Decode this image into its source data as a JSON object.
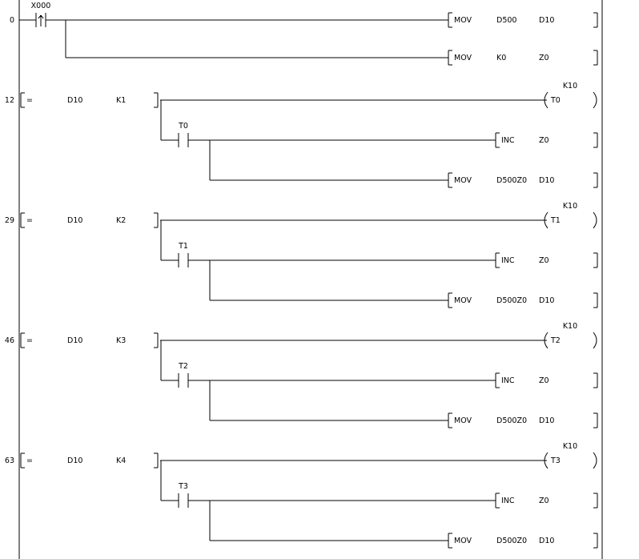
{
  "window": {
    "background": "#ffffff"
  },
  "diagram": {
    "line_color": "#000000",
    "text_color": "#000000",
    "rungs": [
      {
        "step": "0",
        "contact": {
          "device": "X000",
          "type": "rising-edge-pulse"
        },
        "branches": [
          {
            "instruction": {
              "op": "MOV",
              "args": [
                "D500",
                "D10"
              ]
            }
          },
          {
            "instruction": {
              "op": "MOV",
              "args": [
                "K0",
                "Z0"
              ]
            }
          }
        ]
      },
      {
        "step": "12",
        "compare": {
          "op": "=",
          "left": "D10",
          "right": "K1"
        },
        "coil": {
          "device": "T0",
          "preset": "K10"
        },
        "sub": {
          "contact": {
            "device": "T0",
            "type": "normally-open"
          },
          "branches": [
            {
              "instruction": {
                "op": "INC",
                "args": [
                  "Z0"
                ]
              }
            },
            {
              "instruction": {
                "op": "MOV",
                "args": [
                  "D500Z0",
                  "D10"
                ]
              }
            }
          ]
        }
      },
      {
        "step": "29",
        "compare": {
          "op": "=",
          "left": "D10",
          "right": "K2"
        },
        "coil": {
          "device": "T1",
          "preset": "K10"
        },
        "sub": {
          "contact": {
            "device": "T1",
            "type": "normally-open"
          },
          "branches": [
            {
              "instruction": {
                "op": "INC",
                "args": [
                  "Z0"
                ]
              }
            },
            {
              "instruction": {
                "op": "MOV",
                "args": [
                  "D500Z0",
                  "D10"
                ]
              }
            }
          ]
        }
      },
      {
        "step": "46",
        "compare": {
          "op": "=",
          "left": "D10",
          "right": "K3"
        },
        "coil": {
          "device": "T2",
          "preset": "K10"
        },
        "sub": {
          "contact": {
            "device": "T2",
            "type": "normally-open"
          },
          "branches": [
            {
              "instruction": {
                "op": "INC",
                "args": [
                  "Z0"
                ]
              }
            },
            {
              "instruction": {
                "op": "MOV",
                "args": [
                  "D500Z0",
                  "D10"
                ]
              }
            }
          ]
        }
      },
      {
        "step": "63",
        "compare": {
          "op": "=",
          "left": "D10",
          "right": "K4"
        },
        "coil": {
          "device": "T3",
          "preset": "K10"
        },
        "sub": {
          "contact": {
            "device": "T3",
            "type": "normally-open"
          },
          "branches": [
            {
              "instruction": {
                "op": "INC",
                "args": [
                  "Z0"
                ]
              }
            },
            {
              "instruction": {
                "op": "MOV",
                "args": [
                  "D500Z0",
                  "D10"
                ]
              }
            }
          ]
        }
      }
    ]
  }
}
